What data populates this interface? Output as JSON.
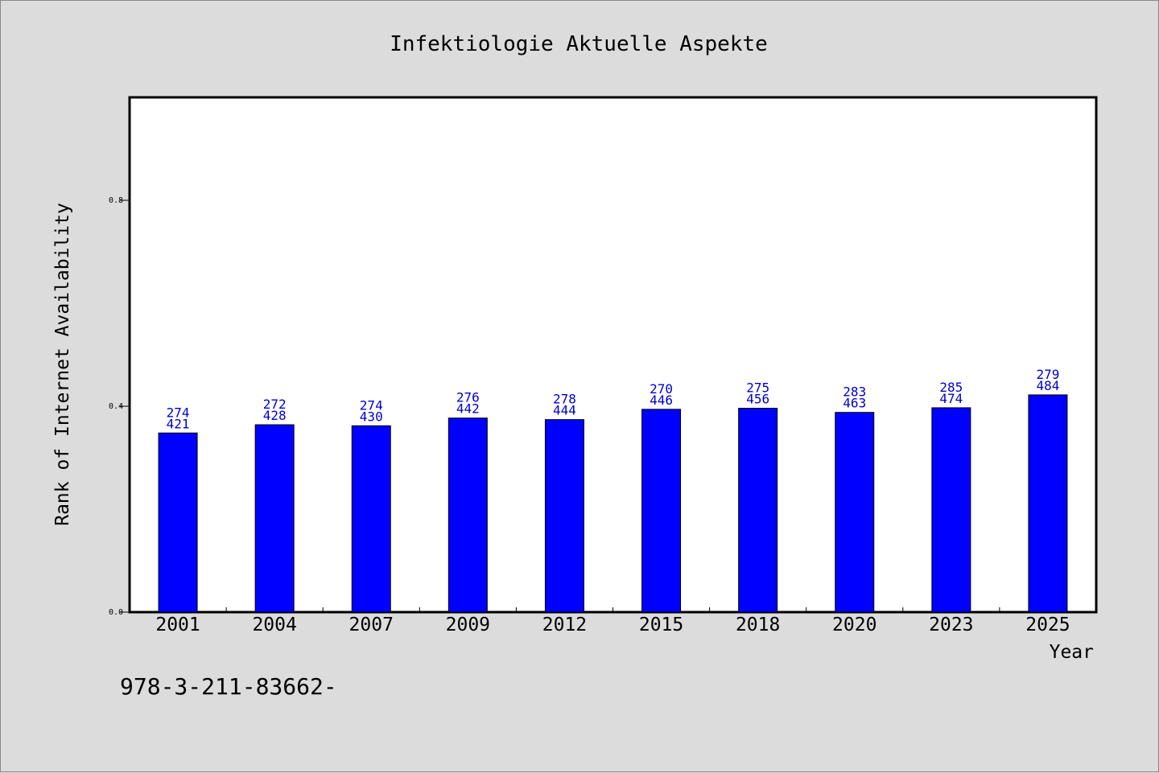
{
  "chart_data": {
    "type": "bar",
    "title": "Infektiologie Aktuelle Aspekte",
    "xlabel": "Year",
    "ylabel": "Rank of Internet Availability",
    "categories": [
      "2001",
      "2004",
      "2007",
      "2009",
      "2012",
      "2015",
      "2018",
      "2020",
      "2023",
      "2025"
    ],
    "values": [
      0.348,
      0.364,
      0.362,
      0.377,
      0.374,
      0.394,
      0.396,
      0.388,
      0.397,
      0.422
    ],
    "label_top": [
      "274",
      "272",
      "274",
      "276",
      "278",
      "270",
      "275",
      "283",
      "285",
      "279"
    ],
    "label_bottom": [
      "421",
      "428",
      "430",
      "442",
      "444",
      "446",
      "456",
      "463",
      "474",
      "484"
    ],
    "yticks": [
      "0.0",
      "0.4",
      "0.8"
    ],
    "ylim": [
      0,
      1.0
    ],
    "grid": false,
    "bar_color": "#0000ff",
    "label_color": "#0000cc"
  },
  "footer_text": "978-3-211-83662-"
}
